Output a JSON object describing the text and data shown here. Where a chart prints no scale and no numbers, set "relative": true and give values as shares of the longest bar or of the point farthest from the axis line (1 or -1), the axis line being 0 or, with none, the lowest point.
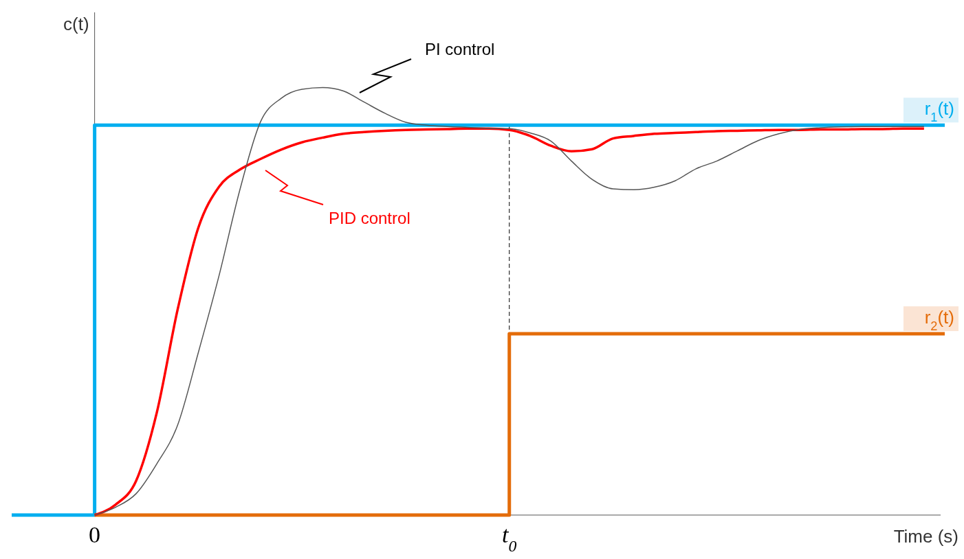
{
  "chart_data": {
    "type": "line",
    "relative": true,
    "xlabel": "Time (s)",
    "ylabel": "c(t)",
    "categories": [
      null,
      null,
      null,
      null,
      "0",
      null,
      null,
      null,
      null,
      null,
      null,
      null,
      null,
      null,
      null,
      null,
      null,
      null,
      null,
      null,
      null,
      null,
      null,
      null,
      "t$_{0}$",
      null,
      null,
      null,
      null,
      null,
      null,
      null,
      null,
      null,
      null,
      null,
      null,
      null,
      null,
      null,
      null,
      null,
      null,
      null,
      null,
      null
    ],
    "series": [
      {
        "name": "r$_{1}$(t)",
        "color": "#00aeef",
        "type": "step",
        "values": [
          0,
          0,
          0,
          0,
          0.912,
          0.912,
          0.912,
          0.912,
          0.912,
          0.912,
          0.912,
          0.912,
          0.912,
          0.912,
          0.912,
          0.912,
          0.912,
          0.912,
          0.912,
          0.912,
          0.912,
          0.912,
          0.912,
          0.912,
          0.912,
          0.912,
          0.912,
          0.912,
          0.912,
          0.912,
          0.912,
          0.912,
          0.912,
          0.912,
          0.912,
          0.912,
          0.912,
          0.912,
          0.912,
          0.912,
          0.912,
          0.912,
          0.912,
          0.912,
          0.912,
          0.912
        ]
      },
      {
        "name": "r$_{2}$(t)",
        "color": "#e46c0a",
        "type": "step",
        "values": [
          null,
          null,
          null,
          null,
          0,
          0,
          0,
          0,
          0,
          0,
          0,
          0,
          0,
          0,
          0,
          0,
          0,
          0,
          0,
          0,
          0,
          0,
          0,
          0,
          0.424,
          0.424,
          0.424,
          0.424,
          0.424,
          0.424,
          0.424,
          0.424,
          0.424,
          0.424,
          0.424,
          0.424,
          0.424,
          0.424,
          0.424,
          0.424,
          0.424,
          0.424,
          0.424,
          0.424,
          0.424,
          0.424
        ]
      },
      {
        "name": "PID control",
        "color": "#ff0000",
        "values": [
          null,
          null,
          null,
          null,
          0,
          0.024,
          0.08,
          0.24,
          0.48,
          0.672,
          0.768,
          0.808,
          0.833,
          0.855,
          0.872,
          0.883,
          0.892,
          0.896,
          0.899,
          0.901,
          0.902,
          0.903,
          0.904,
          0.904,
          0.901,
          0.887,
          0.864,
          0.851,
          0.856,
          0.881,
          0.887,
          0.892,
          0.894,
          0.896,
          0.898,
          0.899,
          0.9,
          0.901,
          0.901,
          0.902,
          0.902,
          0.903,
          0.903,
          0.904,
          0.904,
          null
        ]
      },
      {
        "name": "PI control",
        "color": "#555555",
        "values": [
          null,
          null,
          null,
          null,
          0,
          0.018,
          0.05,
          0.12,
          0.21,
          0.38,
          0.56,
          0.76,
          0.92,
          0.975,
          0.996,
          1,
          0.992,
          0.966,
          0.94,
          0.919,
          0.912,
          0.909,
          0.907,
          0.905,
          0.904,
          0.894,
          0.875,
          0.828,
          0.785,
          0.763,
          0.761,
          0.767,
          0.782,
          0.81,
          0.828,
          0.852,
          0.876,
          0.892,
          0.902,
          0.906,
          0.908,
          0.909,
          0.909,
          0.909,
          0.909,
          null
        ]
      }
    ],
    "ref_lines": [
      {
        "axis": "x",
        "value": "t$_{0}$",
        "color": "#000000",
        "line_style": "dashed"
      }
    ]
  }
}
